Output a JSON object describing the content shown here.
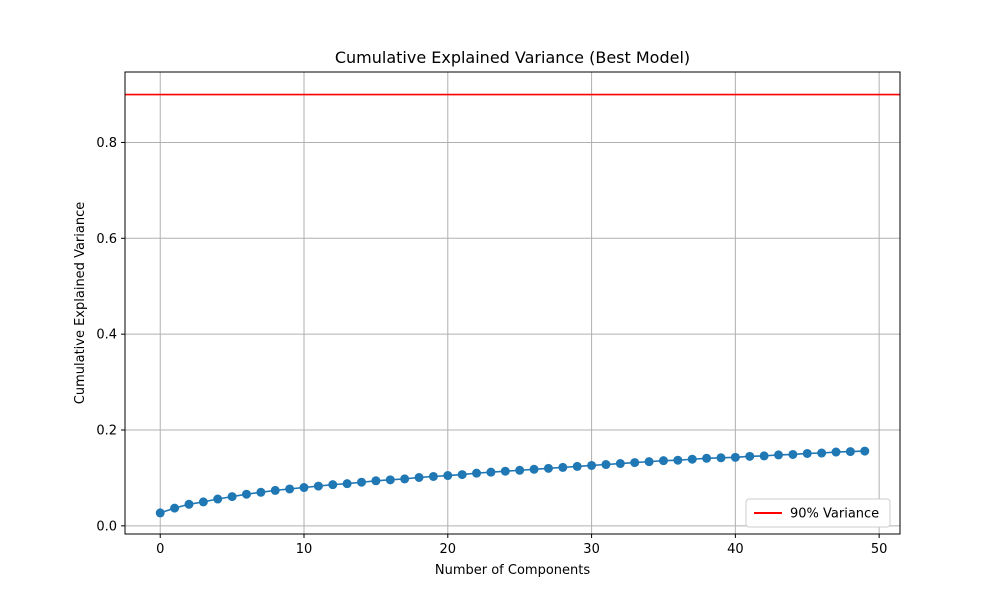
{
  "chart_data": {
    "type": "line",
    "title": "Cumulative Explained Variance (Best Model)",
    "xlabel": "Number of Components",
    "ylabel": "Cumulative Explained Variance",
    "xlim": [
      -2.45,
      51.45
    ],
    "ylim": [
      -0.017,
      0.947
    ],
    "xticks": [
      0,
      10,
      20,
      30,
      40,
      50
    ],
    "yticks": [
      0.0,
      0.2,
      0.4,
      0.6,
      0.8
    ],
    "grid": true,
    "legend_position": "lower-right",
    "series": [
      {
        "x": [
          0,
          1,
          2,
          3,
          4,
          5,
          6,
          7,
          8,
          9,
          10,
          11,
          12,
          13,
          14,
          15,
          16,
          17,
          18,
          19,
          20,
          21,
          22,
          23,
          24,
          25,
          26,
          27,
          28,
          29,
          30,
          31,
          32,
          33,
          34,
          35,
          36,
          37,
          38,
          39,
          40,
          41,
          42,
          43,
          44,
          45,
          46,
          47,
          48,
          49
        ],
        "values": [
          0.027,
          0.037,
          0.045,
          0.05,
          0.056,
          0.061,
          0.066,
          0.07,
          0.074,
          0.077,
          0.08,
          0.083,
          0.086,
          0.088,
          0.091,
          0.094,
          0.096,
          0.098,
          0.101,
          0.103,
          0.105,
          0.107,
          0.11,
          0.112,
          0.114,
          0.116,
          0.118,
          0.12,
          0.122,
          0.124,
          0.126,
          0.128,
          0.13,
          0.132,
          0.134,
          0.136,
          0.137,
          0.139,
          0.141,
          0.142,
          0.143,
          0.145,
          0.146,
          0.148,
          0.149,
          0.151,
          0.152,
          0.154,
          0.155,
          0.156
        ],
        "color": "#1f77b4",
        "marker": "circle"
      }
    ],
    "reference_lines": [
      {
        "orientation": "horizontal",
        "y": 0.9,
        "label": "90% Variance",
        "color": "#ff0000"
      }
    ]
  }
}
